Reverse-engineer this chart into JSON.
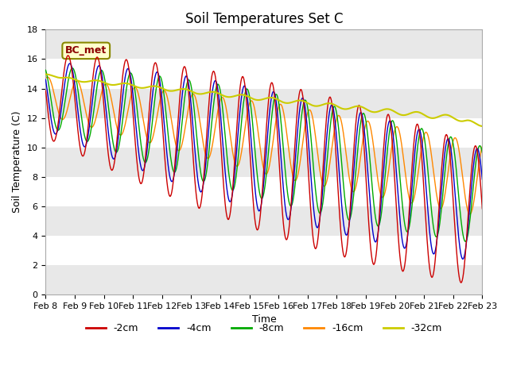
{
  "title": "Soil Temperatures Set C",
  "xlabel": "Time",
  "ylabel": "Soil Temperature (C)",
  "ylim": [
    0,
    18
  ],
  "date_labels": [
    "Feb 8",
    "Feb 9",
    "Feb 10",
    "Feb 11",
    "Feb 12",
    "Feb 13",
    "Feb 14",
    "Feb 15",
    "Feb 16",
    "Feb 17",
    "Feb 18",
    "Feb 19",
    "Feb 20",
    "Feb 21",
    "Feb 22",
    "Feb 23"
  ],
  "legend_labels": [
    "-2cm",
    "-4cm",
    "-8cm",
    "-16cm",
    "-32cm"
  ],
  "colors": [
    "#cc0000",
    "#0000cc",
    "#00aa00",
    "#ff8800",
    "#cccc00"
  ],
  "annotation_text": "BC_met",
  "title_fontsize": 12,
  "label_fontsize": 9,
  "tick_fontsize": 8
}
